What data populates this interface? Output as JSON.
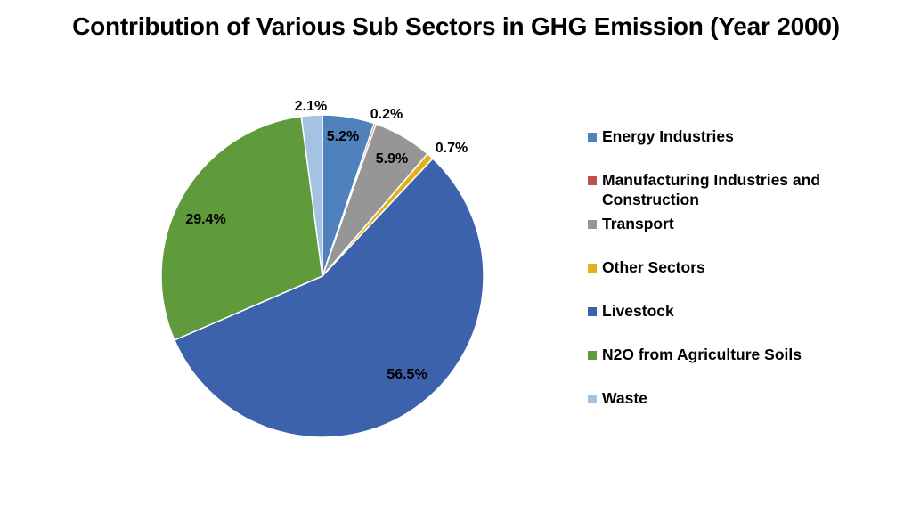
{
  "chart_data": {
    "type": "pie",
    "title": "Contribution of Various Sub Sectors in GHG Emission (Year 2000)",
    "legend_position": "right",
    "slices": [
      {
        "name": "Energy Industries",
        "value": 5.2,
        "label": "5.2%",
        "color": "#4F81BD"
      },
      {
        "name": "Manufacturing Industries and Construction",
        "value": 0.2,
        "label": "0.2%",
        "color": "#C0504D"
      },
      {
        "name": "Transport",
        "value": 5.9,
        "label": "5.9%",
        "color": "#969696"
      },
      {
        "name": "Other Sectors",
        "value": 0.7,
        "label": "0.7%",
        "color": "#E3B11E"
      },
      {
        "name": "Livestock",
        "value": 56.5,
        "label": "56.5%",
        "color": "#3C62AC"
      },
      {
        "name": "N2O from Agriculture Soils",
        "value": 29.4,
        "label": "29.4%",
        "color": "#5F9B3A"
      },
      {
        "name": "Waste",
        "value": 2.1,
        "label": "2.1%",
        "color": "#A4C2E2"
      }
    ]
  }
}
